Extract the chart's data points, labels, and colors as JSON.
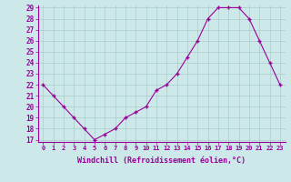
{
  "x": [
    0,
    1,
    2,
    3,
    4,
    5,
    6,
    7,
    8,
    9,
    10,
    11,
    12,
    13,
    14,
    15,
    16,
    17,
    18,
    19,
    20,
    21,
    22,
    23
  ],
  "y": [
    22,
    21,
    20,
    19,
    18,
    17,
    17.5,
    18,
    19,
    19.5,
    20,
    21.5,
    22,
    23,
    24.5,
    26,
    28,
    29,
    29,
    29,
    28,
    26,
    24,
    22
  ],
  "line_color": "#990099",
  "marker": "+",
  "marker_size": 3.5,
  "bg_color": "#cce8e8",
  "grid_color": "#aacccc",
  "xlabel": "Windchill (Refroidissement éolien,°C)",
  "xlabel_color": "#990099",
  "tick_label_color": "#990099",
  "ylim": [
    17,
    29
  ],
  "yticks": [
    17,
    18,
    19,
    20,
    21,
    22,
    23,
    24,
    25,
    26,
    27,
    28,
    29
  ],
  "xticks": [
    0,
    1,
    2,
    3,
    4,
    5,
    6,
    7,
    8,
    9,
    10,
    11,
    12,
    13,
    14,
    15,
    16,
    17,
    18,
    19,
    20,
    21,
    22,
    23
  ],
  "xtick_labels": [
    "0",
    "1",
    "2",
    "3",
    "4",
    "5",
    "6",
    "7",
    "8",
    "9",
    "10",
    "11",
    "12",
    "13",
    "14",
    "15",
    "16",
    "17",
    "18",
    "19",
    "20",
    "21",
    "22",
    "23"
  ]
}
